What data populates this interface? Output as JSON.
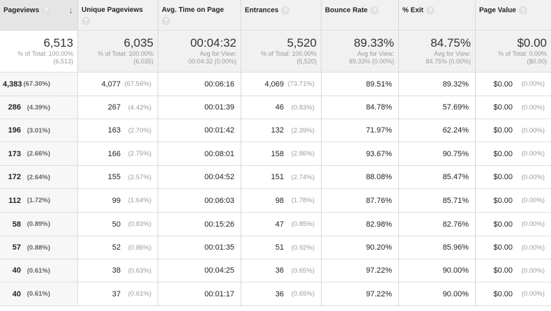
{
  "headers": [
    {
      "label": "Pageviews",
      "sorted": true
    },
    {
      "label": "Unique Pageviews"
    },
    {
      "label": "Avg. Time on Page"
    },
    {
      "label": "Entrances"
    },
    {
      "label": "Bounce Rate"
    },
    {
      "label": "% Exit"
    },
    {
      "label": "Page Value"
    }
  ],
  "help_glyph": "?",
  "sort_glyph": "↓",
  "totals": [
    {
      "value": "6,513",
      "line1": "% of Total: 100.00%",
      "line2": "(6,513)"
    },
    {
      "value": "6,035",
      "line1": "% of Total: 100.00%",
      "line2": "(6,035)"
    },
    {
      "value": "00:04:32",
      "line1": "Avg for View:",
      "line2": "00:04:32 (0.00%)"
    },
    {
      "value": "5,520",
      "line1": "% of Total: 100.00%",
      "line2": "(5,520)"
    },
    {
      "value": "89.33%",
      "line1": "Avg for View:",
      "line2": "89.33% (0.00%)"
    },
    {
      "value": "84.75%",
      "line1": "Avg for View:",
      "line2": "84.75% (0.00%)"
    },
    {
      "value": "$0.00",
      "line1": "% of Total: 0.00%",
      "line2": "($0.00)"
    }
  ],
  "rows": [
    {
      "pv": "4,383",
      "pv_pct": "(67.30%)",
      "upv": "4,077",
      "upv_pct": "(67.56%)",
      "time": "00:06:16",
      "ent": "4,069",
      "ent_pct": "(73.71%)",
      "bounce": "89.51%",
      "exit": "89.32%",
      "value": "$0.00",
      "value_pct": "(0.00%)"
    },
    {
      "pv": "286",
      "pv_pct": "(4.39%)",
      "upv": "267",
      "upv_pct": "(4.42%)",
      "time": "00:01:39",
      "ent": "46",
      "ent_pct": "(0.83%)",
      "bounce": "84.78%",
      "exit": "57.69%",
      "value": "$0.00",
      "value_pct": "(0.00%)"
    },
    {
      "pv": "196",
      "pv_pct": "(3.01%)",
      "upv": "163",
      "upv_pct": "(2.70%)",
      "time": "00:01:42",
      "ent": "132",
      "ent_pct": "(2.39%)",
      "bounce": "71.97%",
      "exit": "62.24%",
      "value": "$0.00",
      "value_pct": "(0.00%)"
    },
    {
      "pv": "173",
      "pv_pct": "(2.66%)",
      "upv": "166",
      "upv_pct": "(2.75%)",
      "time": "00:08:01",
      "ent": "158",
      "ent_pct": "(2.86%)",
      "bounce": "93.67%",
      "exit": "90.75%",
      "value": "$0.00",
      "value_pct": "(0.00%)"
    },
    {
      "pv": "172",
      "pv_pct": "(2.64%)",
      "upv": "155",
      "upv_pct": "(2.57%)",
      "time": "00:04:52",
      "ent": "151",
      "ent_pct": "(2.74%)",
      "bounce": "88.08%",
      "exit": "85.47%",
      "value": "$0.00",
      "value_pct": "(0.00%)"
    },
    {
      "pv": "112",
      "pv_pct": "(1.72%)",
      "upv": "99",
      "upv_pct": "(1.64%)",
      "time": "00:06:03",
      "ent": "98",
      "ent_pct": "(1.78%)",
      "bounce": "87.76%",
      "exit": "85.71%",
      "value": "$0.00",
      "value_pct": "(0.00%)"
    },
    {
      "pv": "58",
      "pv_pct": "(0.89%)",
      "upv": "50",
      "upv_pct": "(0.83%)",
      "time": "00:15:26",
      "ent": "47",
      "ent_pct": "(0.85%)",
      "bounce": "82.98%",
      "exit": "82.76%",
      "value": "$0.00",
      "value_pct": "(0.00%)"
    },
    {
      "pv": "57",
      "pv_pct": "(0.88%)",
      "upv": "52",
      "upv_pct": "(0.86%)",
      "time": "00:01:35",
      "ent": "51",
      "ent_pct": "(0.92%)",
      "bounce": "90.20%",
      "exit": "85.96%",
      "value": "$0.00",
      "value_pct": "(0.00%)"
    },
    {
      "pv": "40",
      "pv_pct": "(0.61%)",
      "upv": "38",
      "upv_pct": "(0.63%)",
      "time": "00:04:25",
      "ent": "36",
      "ent_pct": "(0.65%)",
      "bounce": "97.22%",
      "exit": "90.00%",
      "value": "$0.00",
      "value_pct": "(0.00%)"
    },
    {
      "pv": "40",
      "pv_pct": "(0.61%)",
      "upv": "37",
      "upv_pct": "(0.61%)",
      "time": "00:01:17",
      "ent": "36",
      "ent_pct": "(0.65%)",
      "bounce": "97.22%",
      "exit": "90.00%",
      "value": "$0.00",
      "value_pct": "(0.00%)"
    }
  ]
}
